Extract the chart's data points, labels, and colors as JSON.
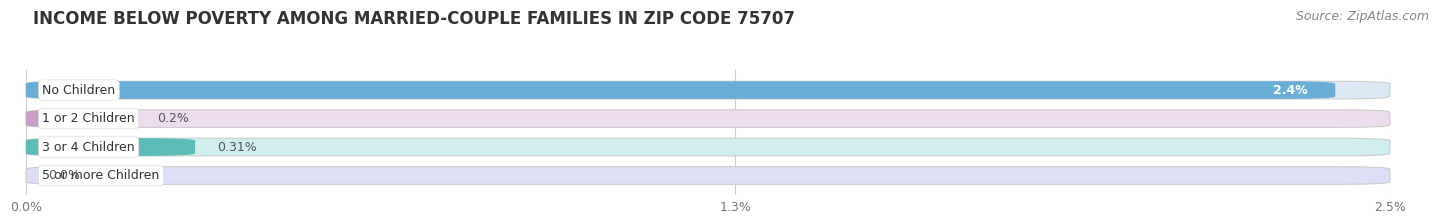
{
  "title": "INCOME BELOW POVERTY AMONG MARRIED-COUPLE FAMILIES IN ZIP CODE 75707",
  "source": "Source: ZipAtlas.com",
  "categories": [
    "No Children",
    "1 or 2 Children",
    "3 or 4 Children",
    "5 or more Children"
  ],
  "values": [
    2.4,
    0.2,
    0.31,
    0.0
  ],
  "bar_colors": [
    "#6aaed6",
    "#c9a0c8",
    "#5bbcb8",
    "#a0a8d8"
  ],
  "bar_bg_colors": [
    "#dce9f5",
    "#ecdded",
    "#d0eeee",
    "#dcdff5"
  ],
  "value_labels": [
    "2.4%",
    "0.2%",
    "0.31%",
    "0.0%"
  ],
  "label_inside_bar": [
    true,
    false,
    false,
    false
  ],
  "xlim": [
    0,
    2.5
  ],
  "xticks": [
    0.0,
    1.3,
    2.5
  ],
  "xtick_labels": [
    "0.0%",
    "1.3%",
    "2.5%"
  ],
  "background_color": "#ffffff",
  "bar_area_bg": "#f0f0f0",
  "bar_height": 0.62,
  "bar_gap": 0.38,
  "title_fontsize": 12,
  "label_fontsize": 9,
  "tick_fontsize": 9,
  "source_fontsize": 9
}
